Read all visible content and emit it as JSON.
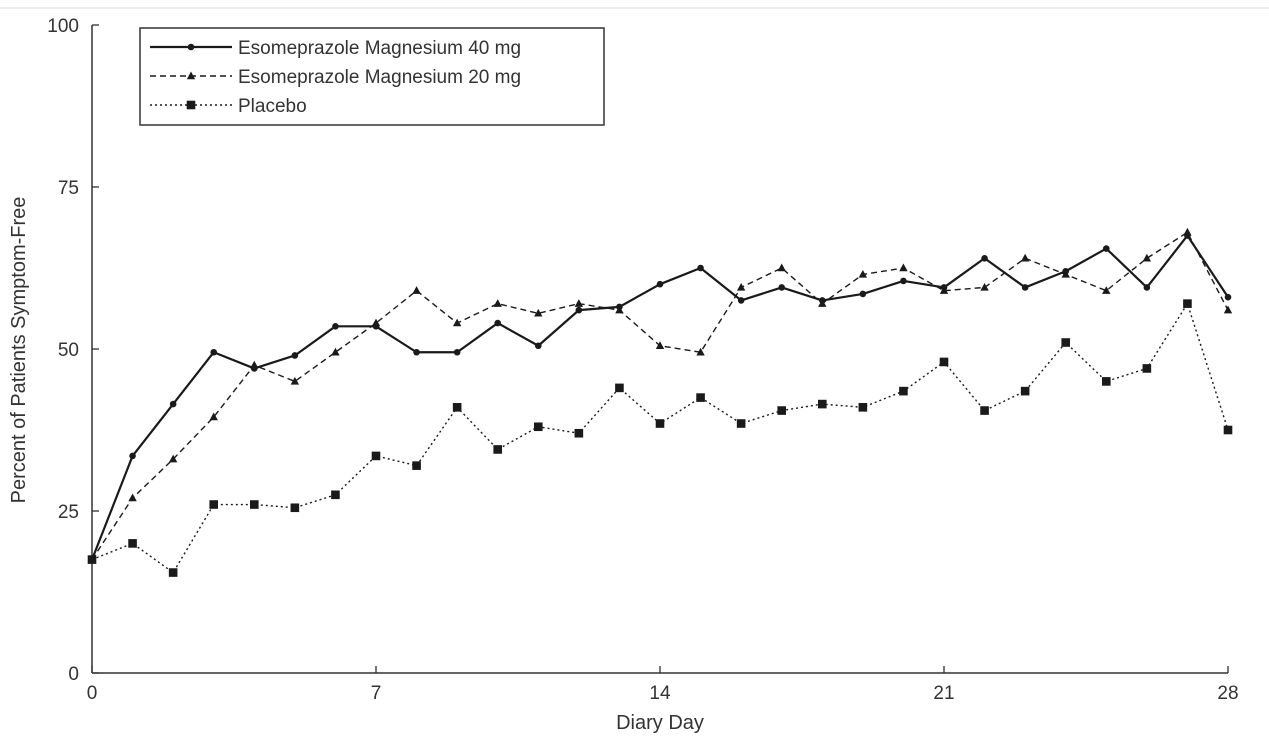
{
  "chart_data": {
    "type": "line",
    "xlabel": "Diary Day",
    "ylabel": "Percent of Patients Symptom-Free",
    "xlim": [
      0,
      28
    ],
    "ylim": [
      0,
      100
    ],
    "xticks": [
      0,
      7,
      14,
      21,
      28
    ],
    "yticks": [
      0,
      25,
      50,
      75,
      100
    ],
    "grid": false,
    "legend_position": "top-left",
    "x": [
      0,
      1,
      2,
      3,
      4,
      5,
      6,
      7,
      8,
      9,
      10,
      11,
      12,
      13,
      14,
      15,
      16,
      17,
      18,
      19,
      20,
      21,
      22,
      23,
      24,
      25,
      26,
      27,
      28
    ],
    "series": [
      {
        "name": "Esomeprazole Magnesium 40 mg",
        "line_style": "solid",
        "marker": "circle",
        "values": [
          17.5,
          33.5,
          41.5,
          49.5,
          47,
          49,
          53.5,
          53.5,
          49.5,
          49.5,
          54,
          50.5,
          56,
          56.5,
          60,
          62.5,
          57.5,
          59.5,
          57.5,
          58.5,
          60.5,
          59.5,
          64,
          59.5,
          62,
          65.5,
          59.5,
          67.5,
          58
        ]
      },
      {
        "name": "Esomeprazole Magnesium 20 mg",
        "line_style": "dashed",
        "marker": "triangle",
        "values": [
          17.5,
          27,
          33,
          39.5,
          47.5,
          45,
          49.5,
          54,
          59,
          54,
          57,
          55.5,
          57,
          56,
          50.5,
          49.5,
          59.5,
          62.5,
          57,
          61.5,
          62.5,
          59,
          59.5,
          64,
          61.5,
          59,
          64,
          68,
          56
        ]
      },
      {
        "name": "Placebo",
        "line_style": "dotted",
        "marker": "square",
        "values": [
          17.5,
          20,
          15.5,
          26,
          26,
          25.5,
          27.5,
          33.5,
          32,
          41,
          34.5,
          38,
          37,
          44,
          38.5,
          42.5,
          38.5,
          40.5,
          41.5,
          41,
          43.5,
          48,
          40.5,
          43.5,
          51,
          45,
          47,
          57,
          37.5
        ]
      }
    ]
  }
}
